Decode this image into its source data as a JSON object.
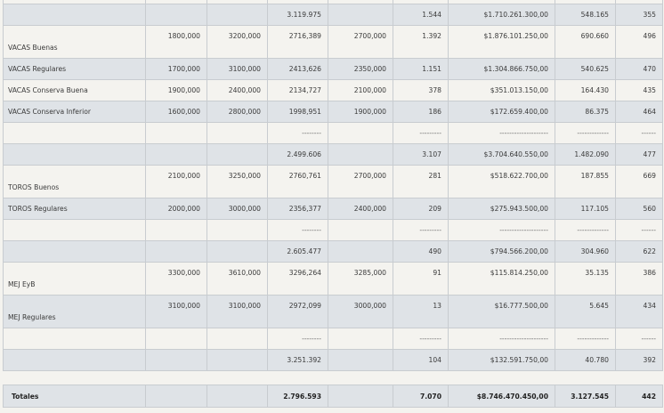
{
  "rows": [
    {
      "style": "light h5",
      "cells": [
        "",
        "",
        "",
        "",
        "",
        "",
        "",
        "",
        ""
      ]
    },
    {
      "style": "gray h25",
      "cells": [
        "",
        "",
        "",
        "3.119.975",
        "",
        "1.544",
        "$1.710.261.300,00",
        "548.165",
        "355"
      ]
    },
    {
      "style": "light h37 tall",
      "cells": [
        "VACAS Buenas",
        "1800,000",
        "3200,000",
        "2716,389",
        "2700,000",
        "1.392",
        "$1.876.101.250,00",
        "690.660",
        "496"
      ]
    },
    {
      "style": "gray h25",
      "cells": [
        "VACAS Regulares",
        "1700,000",
        "3100,000",
        "2413,626",
        "2350,000",
        "1.151",
        "$1.304.866.750,00",
        "540.625",
        "470"
      ]
    },
    {
      "style": "light h25",
      "cells": [
        "VACAS Conserva Buena",
        "1900,000",
        "2400,000",
        "2134,727",
        "2100,000",
        "378",
        "$351.013.150,00",
        "164.430",
        "435"
      ]
    },
    {
      "style": "gray h25",
      "cells": [
        "VACAS Conserva Inferior",
        "1600,000",
        "2800,000",
        "1998,951",
        "1900,000",
        "186",
        "$172.659.400,00",
        "86.375",
        "464"
      ]
    },
    {
      "style": "light h25 dash",
      "cells": [
        "",
        "",
        "",
        "--------",
        "",
        "---------",
        "--------------------",
        "-------------",
        "------"
      ]
    },
    {
      "style": "gray h25",
      "cells": [
        "",
        "",
        "",
        "2.499.606",
        "",
        "3.107",
        "$3.704.640.550,00",
        "1.482.090",
        "477"
      ]
    },
    {
      "style": "light h37 tall",
      "cells": [
        "TOROS Buenos",
        "2100,000",
        "3250,000",
        "2760,761",
        "2700,000",
        "281",
        "$518.622.700,00",
        "187.855",
        "669"
      ]
    },
    {
      "style": "gray h25",
      "cells": [
        "TOROS Regulares",
        "2000,000",
        "3000,000",
        "2356,377",
        "2400,000",
        "209",
        "$275.943.500,00",
        "117.105",
        "560"
      ]
    },
    {
      "style": "light h25 dash",
      "cells": [
        "",
        "",
        "",
        "--------",
        "",
        "---------",
        "--------------------",
        "-------------",
        "------"
      ]
    },
    {
      "style": "gray h25",
      "cells": [
        "",
        "",
        "",
        "2.605.477",
        "",
        "490",
        "$794.566.200,00",
        "304.960",
        "622"
      ]
    },
    {
      "style": "light h37 tall",
      "cells": [
        "MEJ EyB",
        "3300,000",
        "3610,000",
        "3296,264",
        "3285,000",
        "91",
        "$115.814.250,00",
        "35.135",
        "386"
      ]
    },
    {
      "style": "gray h37 tall",
      "cells": [
        "MEJ Regulares",
        "3100,000",
        "3100,000",
        "2972,099",
        "3000,000",
        "13",
        "$16.777.500,00",
        "5.645",
        "434"
      ]
    },
    {
      "style": "light h25 dash",
      "cells": [
        "",
        "",
        "",
        "--------",
        "",
        "---------",
        "--------------------",
        "-------------",
        "------"
      ]
    },
    {
      "style": "gray h25",
      "cells": [
        "",
        "",
        "",
        "3.251.392",
        "",
        "104",
        "$132.591.750,00",
        "40.780",
        "392"
      ]
    }
  ],
  "totals": [
    "Totales",
    "",
    "",
    "2.796.593",
    "",
    "7.070",
    "$8.746.470.450,00",
    "3.127.545",
    "442"
  ]
}
